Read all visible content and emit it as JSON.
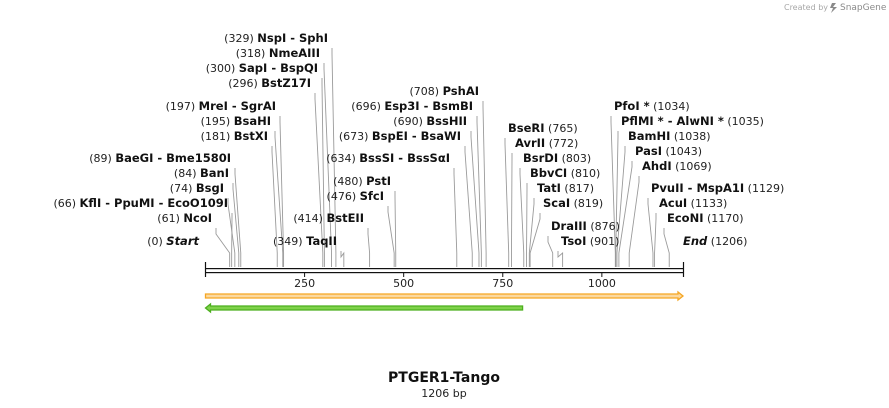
{
  "credit": {
    "created_by": "Created by",
    "brand": "SnapGene"
  },
  "map": {
    "name": "PTGER1-Tango",
    "length_label": "1206 bp",
    "length": 1206,
    "ticks": [
      {
        "pos": 250,
        "label": "250"
      },
      {
        "pos": 500,
        "label": "500"
      },
      {
        "pos": 750,
        "label": "750"
      },
      {
        "pos": 1000,
        "label": "1000"
      }
    ],
    "features": [
      {
        "name": "orange-feature-arrow",
        "start": 0,
        "end": 1206,
        "direction": "forward",
        "color": "#f5a623",
        "fill": "#fbd9a0"
      },
      {
        "name": "green-feature-arrow",
        "start": 0,
        "end": 800,
        "direction": "reverse",
        "color": "#4caf1f",
        "fill": "#7fd24a"
      }
    ],
    "left_labels": [
      {
        "pos": "(0)",
        "name": "Start",
        "site": 0,
        "style": "end"
      },
      {
        "pos": "(61)",
        "name": "NcoI",
        "site": 61
      },
      {
        "pos": "(66)",
        "name": "KflI  -  PpuMI  -  EcoO109I",
        "site": 66
      },
      {
        "pos": "(74)",
        "name": "BsgI",
        "site": 74
      },
      {
        "pos": "(84)",
        "name": "BanI",
        "site": 84
      },
      {
        "pos": "(89)",
        "name": "BaeGI  -  Bme1580I",
        "site": 89
      },
      {
        "pos": "(181)",
        "name": "BstXI",
        "site": 181
      },
      {
        "pos": "(195)",
        "name": "BsaHI",
        "site": 195
      },
      {
        "pos": "(197)",
        "name": "MreI  -  SgrAI",
        "site": 197
      },
      {
        "pos": "(296)",
        "name": "BstZ17I",
        "site": 296
      },
      {
        "pos": "(300)",
        "name": "SapI  -  BspQI",
        "site": 300
      },
      {
        "pos": "(318)",
        "name": "NmeAIII",
        "site": 318
      },
      {
        "pos": "(329)",
        "name": "NspI  -  SphI",
        "site": 329
      },
      {
        "pos": "(349)",
        "name": "TaqII",
        "site": 349
      },
      {
        "pos": "(414)",
        "name": "BstEII",
        "site": 414
      },
      {
        "pos": "(476)",
        "name": "SfcI",
        "site": 476
      },
      {
        "pos": "(480)",
        "name": "PstI",
        "site": 480
      },
      {
        "pos": "(634)",
        "name": "BssSI  -  BssSαI",
        "site": 634
      },
      {
        "pos": "(673)",
        "name": "BspEI  -  BsaWI",
        "site": 673
      },
      {
        "pos": "(690)",
        "name": "BssHII",
        "site": 690
      },
      {
        "pos": "(696)",
        "name": "Esp3I  -  BsmBI",
        "site": 696
      },
      {
        "pos": "(708)",
        "name": "PshAI",
        "site": 708
      }
    ],
    "right_labels": [
      {
        "name": "BseRI",
        "pos": "(765)",
        "site": 765
      },
      {
        "name": "AvrII",
        "pos": "(772)",
        "site": 772
      },
      {
        "name": "BsrDI",
        "pos": "(803)",
        "site": 803
      },
      {
        "name": "BbvCI",
        "pos": "(810)",
        "site": 810
      },
      {
        "name": "TatI",
        "pos": "(817)",
        "site": 817
      },
      {
        "name": "ScaI",
        "pos": "(819)",
        "site": 819
      },
      {
        "name": "DraIII",
        "pos": "(876)",
        "site": 876
      },
      {
        "name": "TsoI",
        "pos": "(901)",
        "site": 901
      },
      {
        "name": "PfoI *",
        "pos": "(1034)",
        "site": 1034
      },
      {
        "name": "PflMI *  -  AlwNI *",
        "pos": "(1035)",
        "site": 1035
      },
      {
        "name": "BamHI",
        "pos": "(1038)",
        "site": 1038
      },
      {
        "name": "PasI",
        "pos": "(1043)",
        "site": 1043
      },
      {
        "name": "AhdI",
        "pos": "(1069)",
        "site": 1069
      },
      {
        "name": "PvuII  -  MspA1I",
        "pos": "(1129)",
        "site": 1129
      },
      {
        "name": "AcuI",
        "pos": "(1133)",
        "site": 1133
      },
      {
        "name": "EcoNI",
        "pos": "(1170)",
        "site": 1170
      },
      {
        "name": "End",
        "pos": "(1206)",
        "site": 1206,
        "style": "end"
      }
    ]
  }
}
